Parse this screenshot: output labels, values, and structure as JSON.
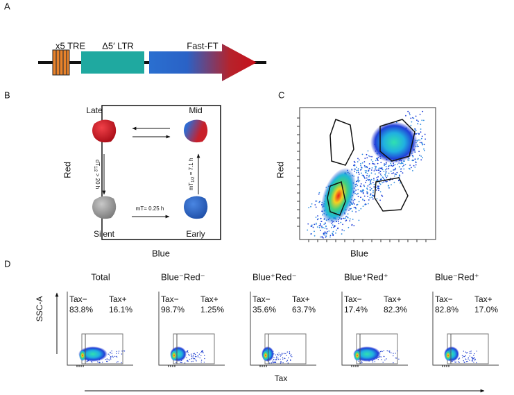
{
  "panelA": {
    "label": "A",
    "elements": [
      "x5 TRE",
      "Δ5′ LTR",
      "Fast-FT"
    ]
  },
  "panelB": {
    "label": "B",
    "states": [
      "Late",
      "Mid",
      "Silent",
      "Early"
    ],
    "rates": [
      {
        "main": "dT",
        "sub": "1/2",
        "rest": " > 20 h"
      },
      {
        "main": "mT",
        "sub": "1/2",
        "rest": " = 7.1 h"
      },
      "mT= 0.25 h"
    ],
    "yLabel": "Red",
    "xLabel": "Blue"
  },
  "panelC": {
    "label": "C",
    "yLabel": "Red",
    "xLabel": "Blue"
  },
  "panelD": {
    "label": "D",
    "yLabel": "SSC-A",
    "xLabel": "Tax",
    "plots": [
      {
        "title": "Total",
        "neg": "Tax−",
        "negPct": "83.8%",
        "pos": "Tax+",
        "posPct": "16.1%"
      },
      {
        "title": "Blue⁻Red⁻",
        "neg": "Tax−",
        "negPct": "98.7%",
        "pos": "Tax+",
        "posPct": "1.25%"
      },
      {
        "title": "Blue⁺Red⁻",
        "neg": "Tax−",
        "negPct": "35.6%",
        "pos": "Tax+",
        "posPct": "63.7%"
      },
      {
        "title": "Blue⁺Red⁺",
        "neg": "Tax−",
        "negPct": "17.4%",
        "pos": "Tax+",
        "posPct": "82.3%"
      },
      {
        "title": "Blue⁻Red⁺",
        "neg": "Tax−",
        "negPct": "82.8%",
        "pos": "Tax+",
        "posPct": "17.0%"
      }
    ]
  }
}
